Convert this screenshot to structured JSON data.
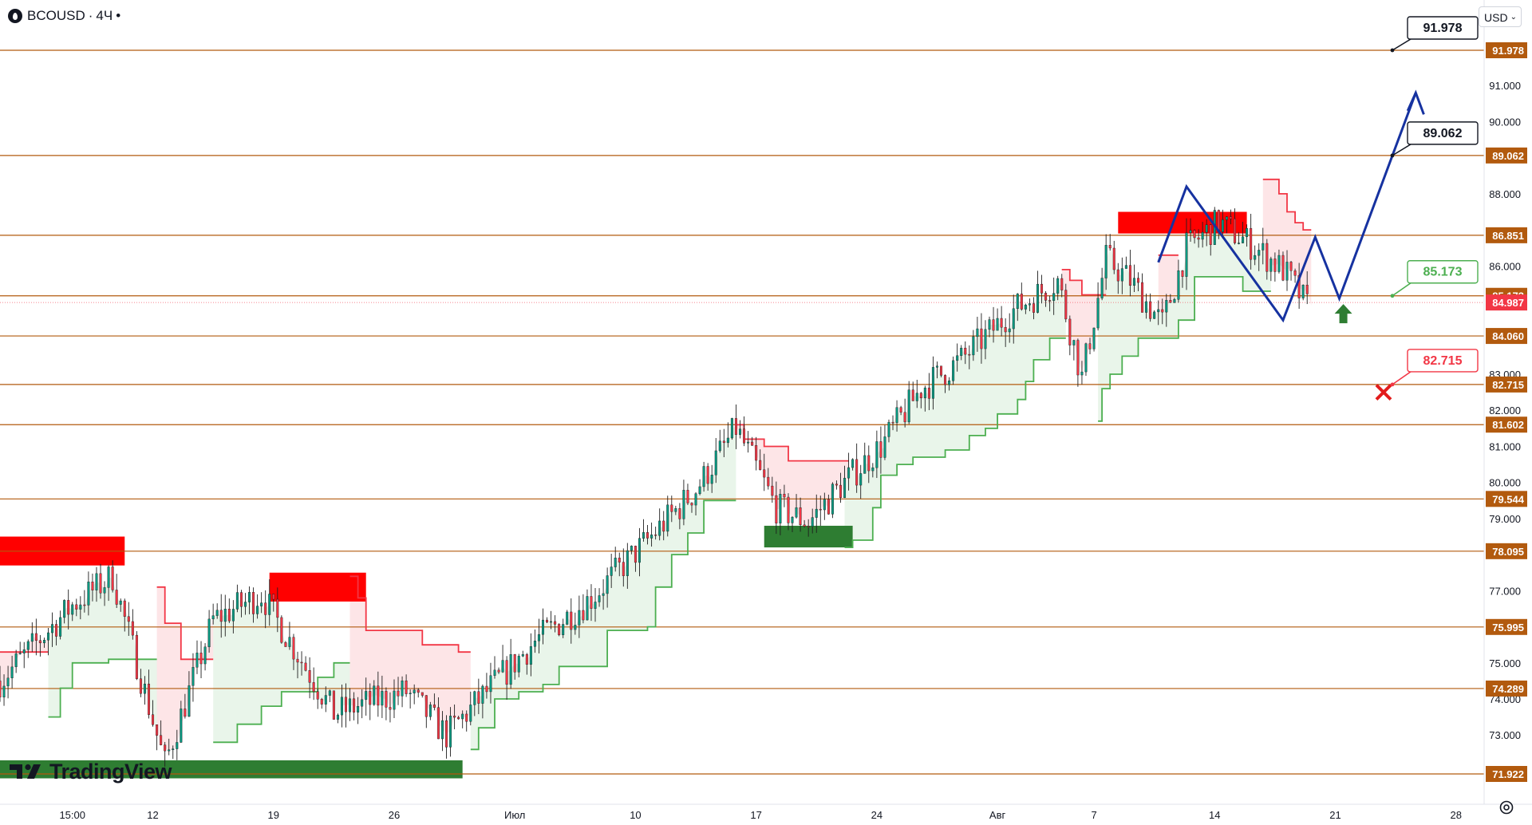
{
  "header": {
    "symbol": "BCOUSD",
    "separator": "·",
    "interval": "4Ч",
    "dot": "•"
  },
  "currency": {
    "label": "USD"
  },
  "logo": {
    "text": "TradingView"
  },
  "colors": {
    "level_line": "#b25a0e",
    "up_candle": "#089981",
    "down_candle": "#f23645",
    "candle_dark": "#1f1f1f",
    "support_line": "#4caf50",
    "resistance_line": "#f23645",
    "projection": "#1632a0",
    "target_label": "#131722",
    "current_label": "#f23645",
    "green_label": "#4caf50",
    "red_label": "#f23645",
    "supply_zone": "#ff0000",
    "demand_zone": "#2e7d32",
    "arrow_up": "#2e7d32",
    "stop_cross": "#e21b1b"
  },
  "chart_data": {
    "type": "candlestick",
    "symbol": "BCOUSD",
    "interval": "4Ч",
    "ylim": [
      71.4,
      92.4
    ],
    "yticks": [
      {
        "v": 91.0,
        "label": "91.000"
      },
      {
        "v": 90.0,
        "label": "90.000"
      },
      {
        "v": 88.0,
        "label": "88.000"
      },
      {
        "v": 86.0,
        "label": "86.000"
      },
      {
        "v": 83.0,
        "label": "83.000"
      },
      {
        "v": 82.0,
        "label": "82.000"
      },
      {
        "v": 81.0,
        "label": "81.000"
      },
      {
        "v": 80.0,
        "label": "80.000"
      },
      {
        "v": 79.0,
        "label": "79.000"
      },
      {
        "v": 77.0,
        "label": "77.000"
      },
      {
        "v": 75.0,
        "label": "75.000"
      },
      {
        "v": 74.0,
        "label": "74.000"
      },
      {
        "v": 73.0,
        "label": "73.000"
      }
    ],
    "xticks": [
      {
        "i": 5,
        "label": "15:00"
      },
      {
        "i": 25,
        "label": "12"
      },
      {
        "i": 55,
        "label": "19"
      },
      {
        "i": 85,
        "label": "26"
      },
      {
        "i": 115,
        "label": "Июл"
      },
      {
        "i": 145,
        "label": "10"
      },
      {
        "i": 175,
        "label": "17"
      },
      {
        "i": 205,
        "label": "24"
      },
      {
        "i": 235,
        "label": "Авг"
      },
      {
        "i": 259,
        "label": "7"
      },
      {
        "i": 289,
        "label": "14"
      },
      {
        "i": 319,
        "label": "21"
      },
      {
        "i": 349,
        "label": "28"
      }
    ],
    "x_range": [
      -13,
      356
    ],
    "levels": [
      {
        "value": 91.978,
        "label": "91.978"
      },
      {
        "value": 89.062,
        "label": "89.062"
      },
      {
        "value": 86.851,
        "label": "86.851"
      },
      {
        "value": 85.173,
        "label": "85.173"
      },
      {
        "value": 84.06,
        "label": "84.060"
      },
      {
        "value": 82.715,
        "label": "82.715"
      },
      {
        "value": 81.602,
        "label": "81.602"
      },
      {
        "value": 79.544,
        "label": "79.544"
      },
      {
        "value": 78.095,
        "label": "78.095"
      },
      {
        "value": 75.995,
        "label": "75.995"
      },
      {
        "value": 74.289,
        "label": "74.289"
      },
      {
        "value": 71.922,
        "label": "71.922"
      }
    ],
    "current_price": {
      "value": 84.987,
      "label": "84.987"
    },
    "callouts": [
      {
        "value": 91.978,
        "label": "91.978",
        "kind": "target"
      },
      {
        "value": 89.062,
        "label": "89.062",
        "kind": "target"
      },
      {
        "value": 85.173,
        "label": "85.173",
        "kind": "entry"
      },
      {
        "value": 82.715,
        "label": "82.715",
        "kind": "stop"
      }
    ],
    "trend_anchors": [
      [
        -13,
        74.5
      ],
      [
        5,
        76.6
      ],
      [
        15,
        77.4
      ],
      [
        28,
        72.2
      ],
      [
        40,
        76.2
      ],
      [
        52,
        76.9
      ],
      [
        70,
        73.6
      ],
      [
        88,
        74.2
      ],
      [
        98,
        73.0
      ],
      [
        108,
        74.2
      ],
      [
        120,
        75.6
      ],
      [
        134,
        76.8
      ],
      [
        148,
        78.4
      ],
      [
        160,
        79.8
      ],
      [
        170,
        81.5
      ],
      [
        180,
        79.3
      ],
      [
        188,
        78.9
      ],
      [
        196,
        79.9
      ],
      [
        206,
        81.0
      ],
      [
        216,
        82.6
      ],
      [
        226,
        83.4
      ],
      [
        238,
        84.7
      ],
      [
        250,
        85.6
      ],
      [
        256,
        82.9
      ],
      [
        262,
        86.2
      ],
      [
        268,
        85.6
      ],
      [
        276,
        84.4
      ],
      [
        282,
        86.5
      ],
      [
        290,
        87.2
      ],
      [
        298,
        86.6
      ],
      [
        306,
        85.9
      ],
      [
        312,
        84.9
      ]
    ],
    "supertrend": [
      {
        "side": "down",
        "pts": [
          [
            -13,
            75.3
          ],
          [
            -1,
            75.3
          ]
        ]
      },
      {
        "side": "up",
        "pts": [
          [
            -1,
            73.5
          ],
          [
            2,
            73.5
          ],
          [
            2,
            74.3
          ],
          [
            5,
            74.3
          ],
          [
            5,
            75.0
          ],
          [
            14,
            75.0
          ],
          [
            14,
            75.1
          ],
          [
            26,
            75.1
          ]
        ]
      },
      {
        "side": "down",
        "pts": [
          [
            26,
            77.1
          ],
          [
            28,
            77.1
          ],
          [
            28,
            76.1
          ],
          [
            32,
            76.1
          ],
          [
            32,
            75.1
          ],
          [
            40,
            75.1
          ]
        ]
      },
      {
        "side": "up",
        "pts": [
          [
            40,
            72.8
          ],
          [
            46,
            72.8
          ],
          [
            46,
            73.3
          ],
          [
            52,
            73.3
          ],
          [
            52,
            73.8
          ],
          [
            57,
            73.8
          ],
          [
            57,
            74.2
          ],
          [
            66,
            74.2
          ],
          [
            66,
            74.6
          ],
          [
            70,
            74.6
          ],
          [
            70,
            75.0
          ],
          [
            74,
            75.0
          ]
        ]
      },
      {
        "side": "down",
        "pts": [
          [
            74,
            77.4
          ],
          [
            76,
            77.4
          ],
          [
            76,
            76.8
          ],
          [
            78,
            76.8
          ],
          [
            78,
            75.9
          ],
          [
            92,
            75.9
          ],
          [
            92,
            75.5
          ],
          [
            101,
            75.5
          ],
          [
            101,
            75.3
          ],
          [
            104,
            75.3
          ]
        ]
      },
      {
        "side": "up",
        "pts": [
          [
            104,
            72.6
          ],
          [
            106,
            72.6
          ],
          [
            106,
            73.2
          ],
          [
            110,
            73.2
          ],
          [
            110,
            74.0
          ],
          [
            116,
            74.0
          ],
          [
            116,
            74.2
          ],
          [
            122,
            74.2
          ],
          [
            122,
            74.4
          ],
          [
            126,
            74.4
          ],
          [
            126,
            74.9
          ],
          [
            138,
            74.9
          ],
          [
            138,
            75.9
          ],
          [
            148,
            75.9
          ],
          [
            148,
            76.0
          ],
          [
            150,
            76.0
          ],
          [
            150,
            77.1
          ],
          [
            154,
            77.1
          ],
          [
            154,
            78.0
          ],
          [
            158,
            78.0
          ],
          [
            158,
            78.6
          ],
          [
            162,
            78.6
          ],
          [
            162,
            79.5
          ],
          [
            170,
            79.5
          ]
        ]
      },
      {
        "side": "down",
        "pts": [
          [
            170,
            81.6
          ],
          [
            172,
            81.6
          ],
          [
            172,
            81.2
          ],
          [
            177,
            81.2
          ],
          [
            177,
            81.0
          ],
          [
            183,
            81.0
          ],
          [
            183,
            80.6
          ],
          [
            198,
            80.6
          ]
        ]
      },
      {
        "side": "up",
        "pts": [
          [
            197,
            78.2
          ],
          [
            199,
            78.2
          ],
          [
            199,
            78.4
          ],
          [
            204,
            78.4
          ],
          [
            204,
            79.3
          ],
          [
            206,
            79.3
          ],
          [
            206,
            80.2
          ],
          [
            210,
            80.2
          ],
          [
            210,
            80.5
          ],
          [
            214,
            80.5
          ],
          [
            214,
            80.7
          ],
          [
            222,
            80.7
          ],
          [
            222,
            80.9
          ],
          [
            228,
            80.9
          ],
          [
            228,
            81.3
          ],
          [
            232,
            81.3
          ],
          [
            232,
            81.5
          ],
          [
            235,
            81.5
          ],
          [
            235,
            81.9
          ],
          [
            240,
            81.9
          ],
          [
            240,
            82.3
          ],
          [
            242,
            82.3
          ],
          [
            242,
            82.8
          ],
          [
            244,
            82.8
          ],
          [
            244,
            83.4
          ],
          [
            248,
            83.4
          ],
          [
            248,
            84.0
          ],
          [
            252,
            84.0
          ]
        ]
      },
      {
        "side": "down",
        "pts": [
          [
            251,
            85.9
          ],
          [
            253,
            85.9
          ],
          [
            253,
            85.6
          ],
          [
            256,
            85.6
          ],
          [
            256,
            85.2
          ],
          [
            262,
            85.2
          ]
        ]
      },
      {
        "side": "up",
        "pts": [
          [
            260,
            81.7
          ],
          [
            261,
            81.7
          ],
          [
            261,
            82.6
          ],
          [
            263,
            82.6
          ],
          [
            263,
            83.0
          ],
          [
            266,
            83.0
          ],
          [
            266,
            83.5
          ],
          [
            270,
            83.5
          ],
          [
            270,
            84.0
          ],
          [
            280,
            84.0
          ],
          [
            280,
            84.5
          ],
          [
            284,
            84.5
          ],
          [
            284,
            85.7
          ],
          [
            296,
            85.7
          ],
          [
            296,
            85.3
          ],
          [
            303,
            85.3
          ]
        ]
      },
      {
        "side": "down",
        "pts": [
          [
            275,
            86.3
          ],
          [
            280,
            86.3
          ]
        ]
      },
      {
        "side": "down",
        "pts": [
          [
            301,
            88.4
          ],
          [
            305,
            88.4
          ],
          [
            305,
            88.0
          ],
          [
            307,
            88.0
          ],
          [
            307,
            87.5
          ],
          [
            309,
            87.5
          ],
          [
            309,
            87.2
          ],
          [
            311,
            87.2
          ],
          [
            311,
            87.0
          ],
          [
            313,
            87.0
          ]
        ]
      }
    ],
    "zones": [
      {
        "kind": "supply",
        "x0": -13,
        "x1": 18,
        "y0": 77.7,
        "y1": 78.5
      },
      {
        "kind": "supply",
        "x0": 54,
        "x1": 78,
        "y0": 76.7,
        "y1": 77.5
      },
      {
        "kind": "demand",
        "x0": -13,
        "x1": 102,
        "y0": 71.8,
        "y1": 72.3
      },
      {
        "kind": "demand",
        "x0": 177,
        "x1": 199,
        "y0": 78.2,
        "y1": 78.8
      },
      {
        "kind": "supply",
        "x0": 265,
        "x1": 297,
        "y0": 86.9,
        "y1": 87.5
      }
    ],
    "projection": [
      [
        275,
        86.1
      ],
      [
        282,
        88.2
      ],
      [
        306,
        84.5
      ],
      [
        314,
        86.8
      ],
      [
        320,
        85.1
      ],
      [
        339,
        90.8
      ]
    ],
    "projection_arrowhead": [
      [
        337,
        90.3
      ],
      [
        339,
        90.8
      ],
      [
        341,
        90.2
      ]
    ],
    "signal_arrow": {
      "x": 321,
      "y": 84.5,
      "direction": "up"
    },
    "stop_marker": {
      "x": 331,
      "y": 82.5
    }
  }
}
